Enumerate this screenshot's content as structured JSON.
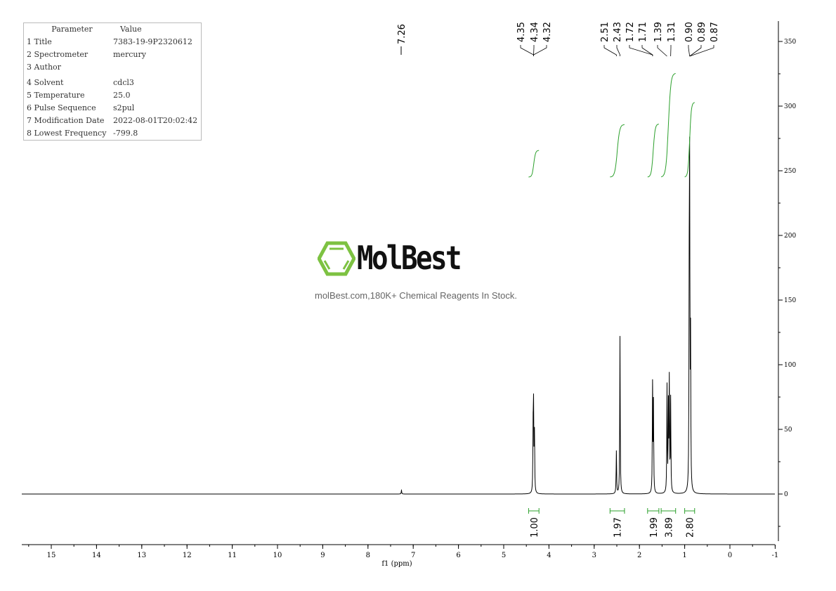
{
  "parameters": {
    "header": [
      "Parameter",
      "Value"
    ],
    "rows": [
      [
        "1 Title",
        "7383-19-9P2320612"
      ],
      [
        "2 Spectrometer",
        "mercury"
      ],
      [
        "3 Author",
        ""
      ],
      [
        "4 Solvent",
        "cdcl3"
      ],
      [
        "5 Temperature",
        "25.0"
      ],
      [
        "6 Pulse Sequence",
        "s2pul"
      ],
      [
        "7 Modification Date",
        "2022-08-01T20:02:42"
      ],
      [
        "8 Lowest Frequency",
        "-799.8"
      ]
    ]
  },
  "watermark": {
    "brand": "MolBest",
    "tagline": "molBest.com,180K+ Chemical Reagents In Stock.",
    "logo_color": "#7dc242"
  },
  "chart_data": {
    "type": "line",
    "xlabel": "f1 (ppm)",
    "xlim": [
      15.65,
      -1
    ],
    "ylim": [
      -36,
      365
    ],
    "x_ticks": [
      15,
      14,
      13,
      12,
      11,
      10,
      9,
      8,
      7,
      6,
      5,
      4,
      3,
      2,
      1,
      0,
      -1
    ],
    "y_ticks": [
      0,
      50,
      100,
      150,
      200,
      250,
      300,
      350
    ],
    "grid": false,
    "line_color": "#000000",
    "integral_color": "#2ca02c",
    "peaks": [
      {
        "ppm": 7.26,
        "height": 3
      },
      {
        "ppm": 4.35,
        "height": 45
      },
      {
        "ppm": 4.34,
        "height": 62
      },
      {
        "ppm": 4.32,
        "height": 45
      },
      {
        "ppm": 2.51,
        "height": 33
      },
      {
        "ppm": 2.43,
        "height": 122
      },
      {
        "ppm": 1.71,
        "height": 83
      },
      {
        "ppm": 1.69,
        "height": 68
      },
      {
        "ppm": 1.39,
        "height": 82
      },
      {
        "ppm": 1.36,
        "height": 65
      },
      {
        "ppm": 1.34,
        "height": 85
      },
      {
        "ppm": 1.31,
        "height": 72
      },
      {
        "ppm": 0.9,
        "height": 140
      },
      {
        "ppm": 0.89,
        "height": 230
      },
      {
        "ppm": 0.87,
        "height": 112
      }
    ],
    "peak_labels": [
      {
        "text": "7.26",
        "ppm": 7.26
      },
      {
        "text": "4.35",
        "ppm": 4.34
      },
      {
        "text": "4.34",
        "ppm": 4.34
      },
      {
        "text": "4.32",
        "ppm": 4.34
      },
      {
        "text": "2.51",
        "ppm": 2.51
      },
      {
        "text": "2.43",
        "ppm": 2.43
      },
      {
        "text": "1.72",
        "ppm": 1.71
      },
      {
        "text": "1.71",
        "ppm": 1.71
      },
      {
        "text": "1.39",
        "ppm": 1.39
      },
      {
        "text": "1.31",
        "ppm": 1.31
      },
      {
        "text": "0.90",
        "ppm": 0.89
      },
      {
        "text": "0.89",
        "ppm": 0.89
      },
      {
        "text": "0.87",
        "ppm": 0.89
      }
    ],
    "integrals": [
      {
        "value": "1.00",
        "from": 4.45,
        "to": 4.22
      },
      {
        "value": "1.97",
        "from": 2.65,
        "to": 2.33
      },
      {
        "value": "1.99",
        "from": 1.82,
        "to": 1.57
      },
      {
        "value": "3.89",
        "from": 1.52,
        "to": 1.2
      },
      {
        "value": "2.80",
        "from": 1.0,
        "to": 0.78
      }
    ]
  }
}
